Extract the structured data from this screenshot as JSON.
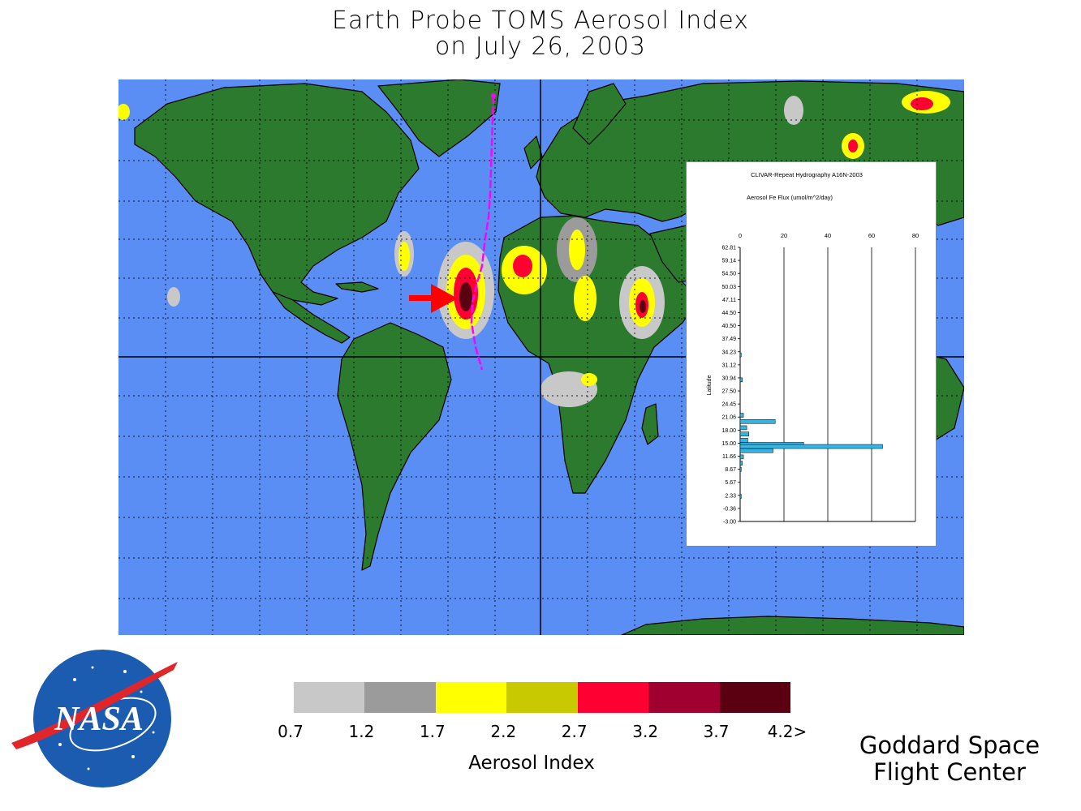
{
  "title": {
    "line1": "Earth Probe TOMS Aerosol Index",
    "line2": "on July 26, 2003"
  },
  "map": {
    "ocean_color": "#5b8ef5",
    "land_color": "#2c7a2e",
    "grid_color": "#000000",
    "cruise_track_color": "#ff00ff",
    "arrow_color": "#ff0000"
  },
  "inset_chart": {
    "title": "CLIVAR-Repeat Hydrography A16N-2003",
    "subtitle": "Aerosol Fe Flux (umol/m^2/day)",
    "ylabel": "Latitude"
  },
  "chart_data": {
    "type": "bar",
    "orientation": "horizontal",
    "title": "CLIVAR-Repeat Hydrography A16N-2003",
    "xlabel": "Aerosol Fe Flux (umol/m^2/day)",
    "ylabel": "Latitude",
    "xlim": [
      0,
      80
    ],
    "x_ticks": [
      "0",
      "20",
      "40",
      "60",
      "80"
    ],
    "y_tick_labels": [
      "62.81",
      "59.14",
      "54.50",
      "50.03",
      "47.11",
      "44.50",
      "40.50",
      "37.49",
      "34.23",
      "31.12",
      "30.94",
      "27.50",
      "24.45",
      "21.06",
      "18.00",
      "15.00",
      "11.66",
      "8.67",
      "5.67",
      "2.33",
      "-0.36",
      "-3.00"
    ],
    "bar_color": "#33b5e5",
    "series": [
      {
        "latitudes": [
          37.0,
          31.0,
          22.5,
          21.0,
          19.5,
          18.0,
          16.5,
          15.5,
          15.0,
          14.0,
          12.5,
          11.0,
          9.5,
          3.0
        ],
        "values": [
          0.5,
          1.0,
          1.5,
          16.0,
          3.0,
          4.0,
          3.5,
          29.0,
          65.0,
          15.0,
          1.5,
          1.0,
          0.5,
          0.5
        ]
      }
    ]
  },
  "legend": {
    "colors": [
      "#c8c8c8",
      "#9b9b9b",
      "#ffff00",
      "#c9c900",
      "#ff0033",
      "#a00030",
      "#5a0010"
    ],
    "ticks": [
      "0.7",
      "1.2",
      "1.7",
      "2.2",
      "2.7",
      "3.2",
      "3.7",
      "4.2>"
    ],
    "label": "Aerosol Index"
  },
  "footer": {
    "line1": "Goddard Space",
    "line2": "Flight Center"
  },
  "logo": {
    "text": "NASA",
    "icon": "nasa-meatball-logo"
  }
}
